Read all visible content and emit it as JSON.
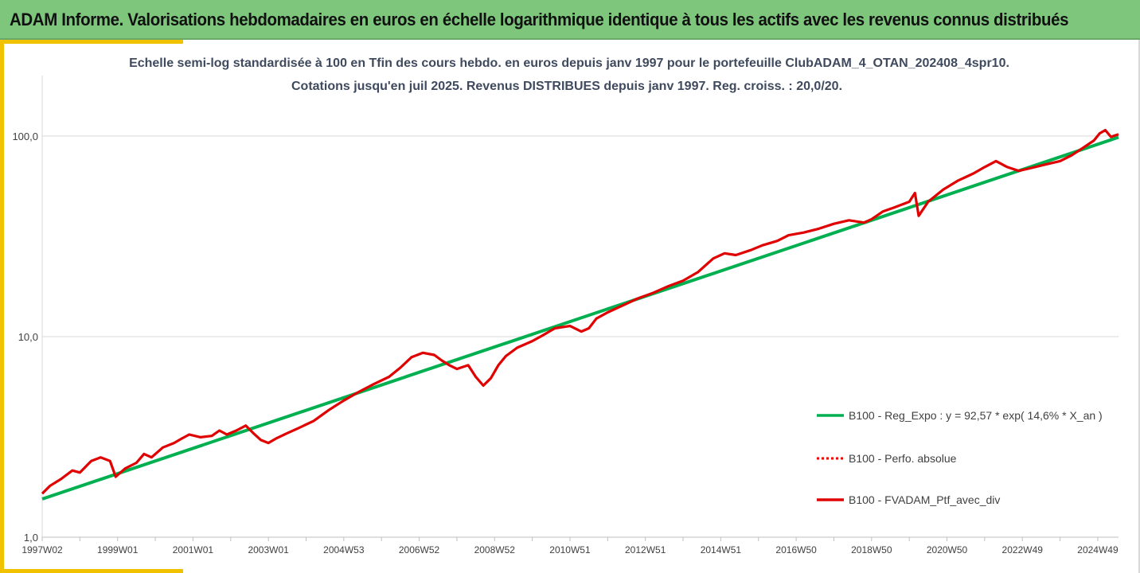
{
  "banner": {
    "title": "ADAM Informe. Valorisations hebdomadaires en euros en échelle logarithmique identique à tous les actifs avec les revenus connus distribués",
    "bg_color": "#7dc67c",
    "accent_color": "#f1c200"
  },
  "chart_data": {
    "type": "line",
    "title_line1": "Echelle semi-log standardisée  à 100 en Tfin des cours hebdo.  en euros depuis janv 1997 pour le portefeuille ClubADAM_4_OTAN_202408_4spr10.",
    "title_line2": "Cotations  jusqu'en juil 2025. Revenus DISTRIBUES depuis janv 1997. Reg. croiss. : 20,0/20.",
    "yscale": "log",
    "ylim": [
      1,
      200
    ],
    "xlim": [
      1997.0,
      2025.55
    ],
    "y_ticks": [
      {
        "value": 1,
        "label": "1,0"
      },
      {
        "value": 10,
        "label": "10,0"
      },
      {
        "value": 100,
        "label": "100,0"
      }
    ],
    "x_ticks": [
      {
        "value": 1997.0,
        "label": "1997W02"
      },
      {
        "value": 1999.0,
        "label": "1999W01"
      },
      {
        "value": 2001.0,
        "label": "2001W01"
      },
      {
        "value": 2003.0,
        "label": "2003W01"
      },
      {
        "value": 2005.0,
        "label": "2004W53"
      },
      {
        "value": 2007.0,
        "label": "2006W52"
      },
      {
        "value": 2009.0,
        "label": "2008W52"
      },
      {
        "value": 2011.0,
        "label": "2010W51"
      },
      {
        "value": 2013.0,
        "label": "2012W51"
      },
      {
        "value": 2015.0,
        "label": "2014W51"
      },
      {
        "value": 2017.0,
        "label": "2016W50"
      },
      {
        "value": 2019.0,
        "label": "2018W50"
      },
      {
        "value": 2021.0,
        "label": "2020W50"
      },
      {
        "value": 2023.0,
        "label": "2022W49"
      },
      {
        "value": 2025.0,
        "label": "2024W49"
      }
    ],
    "grid": "horizontal",
    "legend_position": "right",
    "series": [
      {
        "name": "B100 - Reg_Expo : y = 92,57 * exp( 14,6% *  X_an )",
        "color": "#00b050",
        "style": "solid",
        "x": [
          1997.0,
          2025.55
        ],
        "y": [
          1.55,
          98.5
        ]
      },
      {
        "name": "B100 - Perfo. absolue",
        "color": "#e00000",
        "style": "dotted",
        "x": [],
        "y": []
      },
      {
        "name": "B100 - FVADAM_Ptf_avec_div",
        "color": "#e00000",
        "style": "solid",
        "x": [
          1997.0,
          1997.2,
          1997.5,
          1997.8,
          1998.0,
          1998.3,
          1998.55,
          1998.8,
          1998.95,
          1999.2,
          1999.5,
          1999.7,
          1999.9,
          2000.2,
          2000.5,
          2000.7,
          2000.9,
          2001.2,
          2001.5,
          2001.7,
          2001.9,
          2002.15,
          2002.4,
          2002.6,
          2002.8,
          2003.0,
          2003.2,
          2003.5,
          2003.8,
          2004.2,
          2004.6,
          2005.0,
          2005.4,
          2005.8,
          2006.2,
          2006.5,
          2006.8,
          2007.1,
          2007.4,
          2007.6,
          2007.8,
          2008.0,
          2008.3,
          2008.5,
          2008.7,
          2008.9,
          2009.1,
          2009.3,
          2009.6,
          2010.0,
          2010.3,
          2010.6,
          2011.0,
          2011.3,
          2011.5,
          2011.7,
          2012.0,
          2012.4,
          2012.8,
          2013.2,
          2013.6,
          2014.0,
          2014.4,
          2014.8,
          2015.1,
          2015.4,
          2015.8,
          2016.1,
          2016.5,
          2016.8,
          2017.2,
          2017.6,
          2018.0,
          2018.4,
          2018.8,
          2019.0,
          2019.3,
          2019.6,
          2020.0,
          2020.15,
          2020.25,
          2020.5,
          2020.9,
          2021.3,
          2021.7,
          2022.0,
          2022.3,
          2022.6,
          2022.9,
          2023.2,
          2023.6,
          2024.0,
          2024.3,
          2024.6,
          2024.9,
          2025.05,
          2025.2,
          2025.35,
          2025.55
        ],
        "y": [
          1.65,
          1.8,
          1.95,
          2.15,
          2.1,
          2.4,
          2.5,
          2.4,
          2.0,
          2.2,
          2.35,
          2.6,
          2.5,
          2.8,
          2.95,
          3.1,
          3.25,
          3.15,
          3.2,
          3.4,
          3.25,
          3.4,
          3.6,
          3.3,
          3.05,
          2.95,
          3.1,
          3.3,
          3.5,
          3.8,
          4.3,
          4.8,
          5.3,
          5.8,
          6.3,
          7.0,
          7.9,
          8.3,
          8.1,
          7.6,
          7.2,
          6.9,
          7.2,
          6.3,
          5.7,
          6.2,
          7.2,
          8.0,
          8.8,
          9.5,
          10.2,
          11.0,
          11.3,
          10.6,
          11.0,
          12.3,
          13.2,
          14.3,
          15.5,
          16.5,
          17.8,
          19.0,
          21.0,
          24.5,
          26.0,
          25.5,
          27.0,
          28.5,
          30.0,
          32.0,
          33.0,
          34.5,
          36.5,
          38.0,
          37.0,
          38.5,
          42.0,
          44.0,
          47.0,
          52.0,
          40.0,
          47.0,
          54.0,
          60.0,
          65.0,
          70.0,
          75.0,
          70.0,
          67.0,
          69.0,
          72.0,
          75.0,
          80.0,
          87.0,
          95.0,
          103.0,
          107.0,
          99.0,
          102.0
        ]
      }
    ]
  }
}
